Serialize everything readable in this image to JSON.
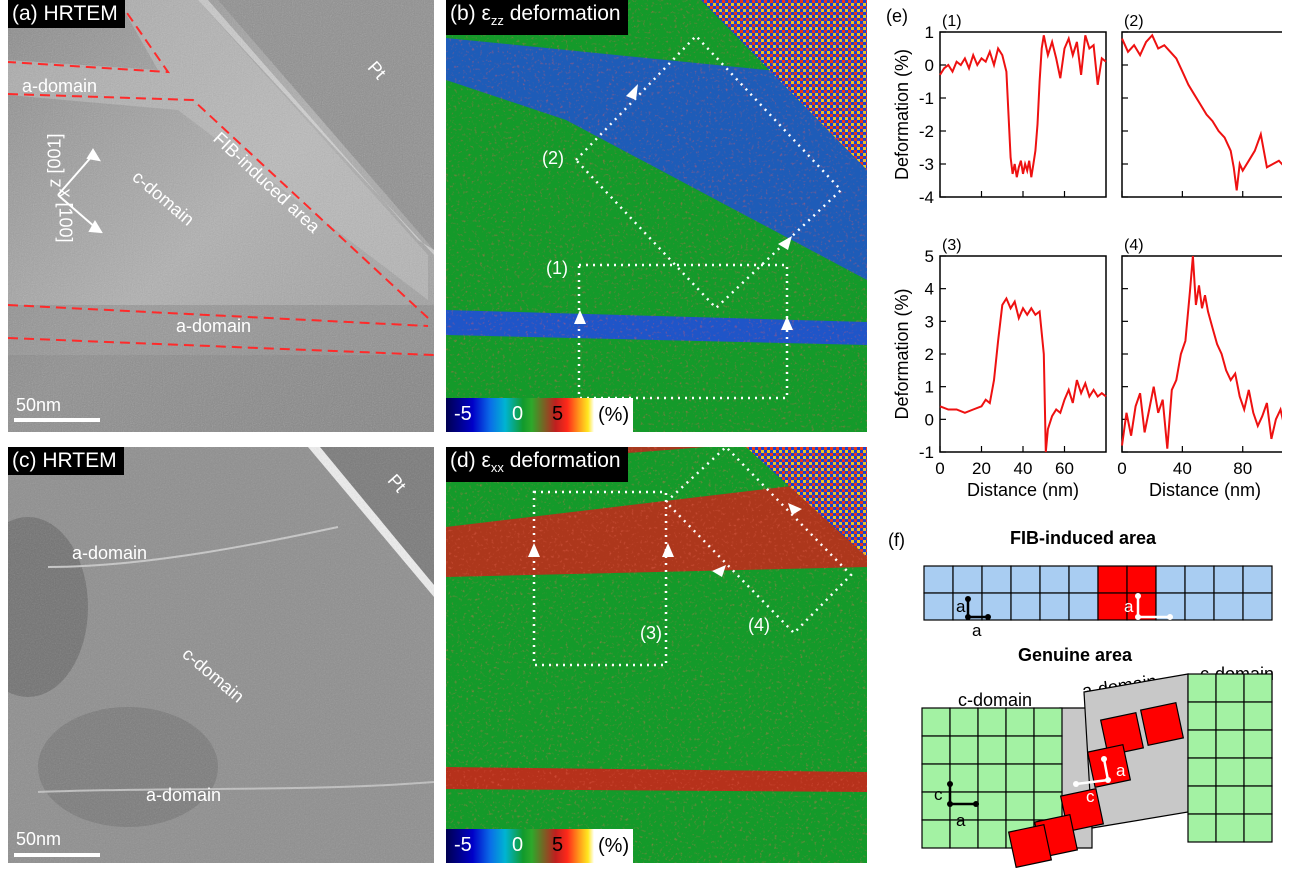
{
  "panels": {
    "a": {
      "tag": "(a) HRTEM",
      "labels": {
        "pt": "Pt",
        "a_domain_top": "a-domain",
        "fib": "FIB-induced area",
        "axis_z": "z [001]",
        "axis_x": "x [100]",
        "c_domain": "c-domain",
        "a_domain_bottom": "a-domain"
      },
      "scale": "50nm"
    },
    "b": {
      "tag_main": "(b) ε",
      "tag_sub": "zz",
      "tag_rest": " deformation",
      "box_labels": {
        "box1": "(1)",
        "box2": "(2)"
      },
      "colorbar": {
        "min": "-5",
        "mid": "0",
        "max": "5",
        "unit": "(%)"
      }
    },
    "c": {
      "tag": "(c) HRTEM",
      "labels": {
        "pt": "Pt",
        "a_domain_top": "a-domain",
        "c_domain": "c-domain",
        "a_domain_bottom": "a-domain"
      },
      "scale": "50nm"
    },
    "d": {
      "tag_main": "(d) ε",
      "tag_sub": "xx",
      "tag_rest": " deformation",
      "box_labels": {
        "box3": "(3)",
        "box4": "(4)"
      },
      "colorbar": {
        "min": "-5",
        "mid": "0",
        "max": "5",
        "unit": "(%)"
      }
    },
    "e": {
      "label": "(e)"
    },
    "f": {
      "label": "(f)",
      "fib_title": "FIB-induced area",
      "genuine_title": "Genuine area",
      "cell_a": "a",
      "cell_c": "c",
      "c_domain_left": "c-domain",
      "a_domain_mid": "a-domain",
      "c_domain_right": "c-domain",
      "colors": {
        "blue": "#a9cdf2",
        "red": "#ff0000",
        "green": "#a3f2a3",
        "gray": "#c8c8c8"
      }
    }
  },
  "chart_data": [
    {
      "type": "line",
      "title": "(1)",
      "xlabel": "",
      "ylabel": "Deformation (%)",
      "xlim": [
        0,
        80
      ],
      "ylim": [
        -4,
        1
      ],
      "color": "#ee1111",
      "xticks": [
        "",
        "",
        "",
        "",
        ""
      ],
      "yticks": [
        "1",
        "0",
        "-1",
        "-2",
        "-3",
        "-4"
      ],
      "x": [
        0,
        2,
        4,
        6,
        8,
        10,
        12,
        14,
        16,
        18,
        20,
        22,
        24,
        26,
        28,
        30,
        32,
        33,
        34,
        35,
        36,
        37,
        38,
        39,
        40,
        41,
        42,
        43,
        44,
        45,
        46,
        47,
        48,
        49,
        50,
        51,
        52,
        54,
        56,
        58,
        60,
        62,
        64,
        66,
        68,
        70,
        72,
        74,
        76,
        78,
        80
      ],
      "y": [
        -0.3,
        -0.1,
        0,
        -0.2,
        0.1,
        0,
        0.2,
        -0.1,
        0.3,
        0,
        0.2,
        0.1,
        0.4,
        0,
        0.5,
        0.3,
        -0.2,
        -1.5,
        -2.8,
        -3.3,
        -3.0,
        -3.4,
        -3.1,
        -2.9,
        -3.3,
        -3.0,
        -3.2,
        -2.9,
        -3.4,
        -3.0,
        -2.6,
        -1.8,
        -0.5,
        0.5,
        0.9,
        0.6,
        0.3,
        0.7,
        0.2,
        -0.4,
        0.5,
        0.8,
        0.3,
        0.7,
        -0.3,
        0.9,
        0.5,
        0.6,
        -0.6,
        0.2,
        0.1
      ]
    },
    {
      "type": "line",
      "title": "(2)",
      "xlabel": "",
      "ylabel": "",
      "xlim": [
        0,
        110
      ],
      "ylim": [
        -4,
        1
      ],
      "color": "#ee1111",
      "xticks": [
        "",
        "",
        "",
        ""
      ],
      "yticks": [],
      "x": [
        0,
        4,
        8,
        12,
        16,
        20,
        24,
        28,
        32,
        36,
        40,
        44,
        48,
        52,
        56,
        60,
        64,
        68,
        72,
        74,
        76,
        78,
        80,
        84,
        88,
        92,
        96,
        100,
        104,
        108,
        110
      ],
      "y": [
        0.8,
        0.4,
        0.6,
        0.3,
        0.7,
        0.9,
        0.5,
        0.6,
        0.4,
        0.2,
        -0.2,
        -0.6,
        -0.9,
        -1.2,
        -1.5,
        -1.7,
        -2.0,
        -2.2,
        -2.6,
        -3.1,
        -3.8,
        -3.0,
        -3.2,
        -2.9,
        -2.6,
        -2.1,
        -3.1,
        -3.0,
        -2.9,
        -3.1,
        -3.0
      ]
    },
    {
      "type": "line",
      "title": "(3)",
      "xlabel": "Distance (nm)",
      "ylabel": "Deformation (%)",
      "xlim": [
        0,
        80
      ],
      "ylim": [
        -1,
        5
      ],
      "color": "#ee1111",
      "xticks": [
        "0",
        "20",
        "40",
        "60"
      ],
      "yticks": [
        "5",
        "4",
        "3",
        "2",
        "1",
        "0",
        "-1"
      ],
      "x": [
        0,
        4,
        8,
        12,
        16,
        20,
        22,
        24,
        26,
        28,
        30,
        32,
        34,
        36,
        38,
        40,
        42,
        44,
        46,
        48,
        50,
        51,
        52,
        54,
        56,
        58,
        60,
        62,
        64,
        66,
        68,
        70,
        72,
        74,
        76,
        78,
        80
      ],
      "y": [
        0.4,
        0.3,
        0.3,
        0.2,
        0.3,
        0.4,
        0.6,
        0.5,
        1.2,
        2.4,
        3.5,
        3.7,
        3.4,
        3.6,
        3.1,
        3.4,
        3.2,
        3.4,
        3.2,
        3.3,
        2.0,
        -1.0,
        -0.3,
        0.1,
        0.3,
        0.2,
        0.6,
        0.9,
        0.5,
        1.2,
        0.8,
        1.1,
        0.7,
        0.9,
        0.7,
        0.8,
        0.7
      ]
    },
    {
      "type": "line",
      "title": "(4)",
      "xlabel": "Distance (nm)",
      "ylabel": "",
      "xlim": [
        0,
        110
      ],
      "ylim": [
        -1,
        5
      ],
      "color": "#ee1111",
      "xticks": [
        "0",
        "40",
        "80"
      ],
      "yticks": [],
      "x": [
        0,
        3,
        6,
        9,
        12,
        15,
        18,
        21,
        24,
        27,
        30,
        33,
        36,
        39,
        42,
        45,
        47,
        49,
        51,
        53,
        55,
        57,
        60,
        63,
        66,
        69,
        72,
        75,
        78,
        81,
        84,
        87,
        90,
        93,
        96,
        99,
        102,
        105,
        108,
        110
      ],
      "y": [
        -0.8,
        0.2,
        -0.5,
        0.4,
        0.8,
        -0.4,
        0.3,
        1.0,
        0.2,
        0.6,
        -0.9,
        0.9,
        1.2,
        2.0,
        2.4,
        3.9,
        5.0,
        3.5,
        4.1,
        3.4,
        3.8,
        3.3,
        2.8,
        2.3,
        2.0,
        1.5,
        1.2,
        1.4,
        0.7,
        0.3,
        0.9,
        0.2,
        -0.2,
        0.1,
        0.5,
        -0.6,
        0.0,
        0.3,
        -0.3,
        0.2
      ]
    }
  ]
}
